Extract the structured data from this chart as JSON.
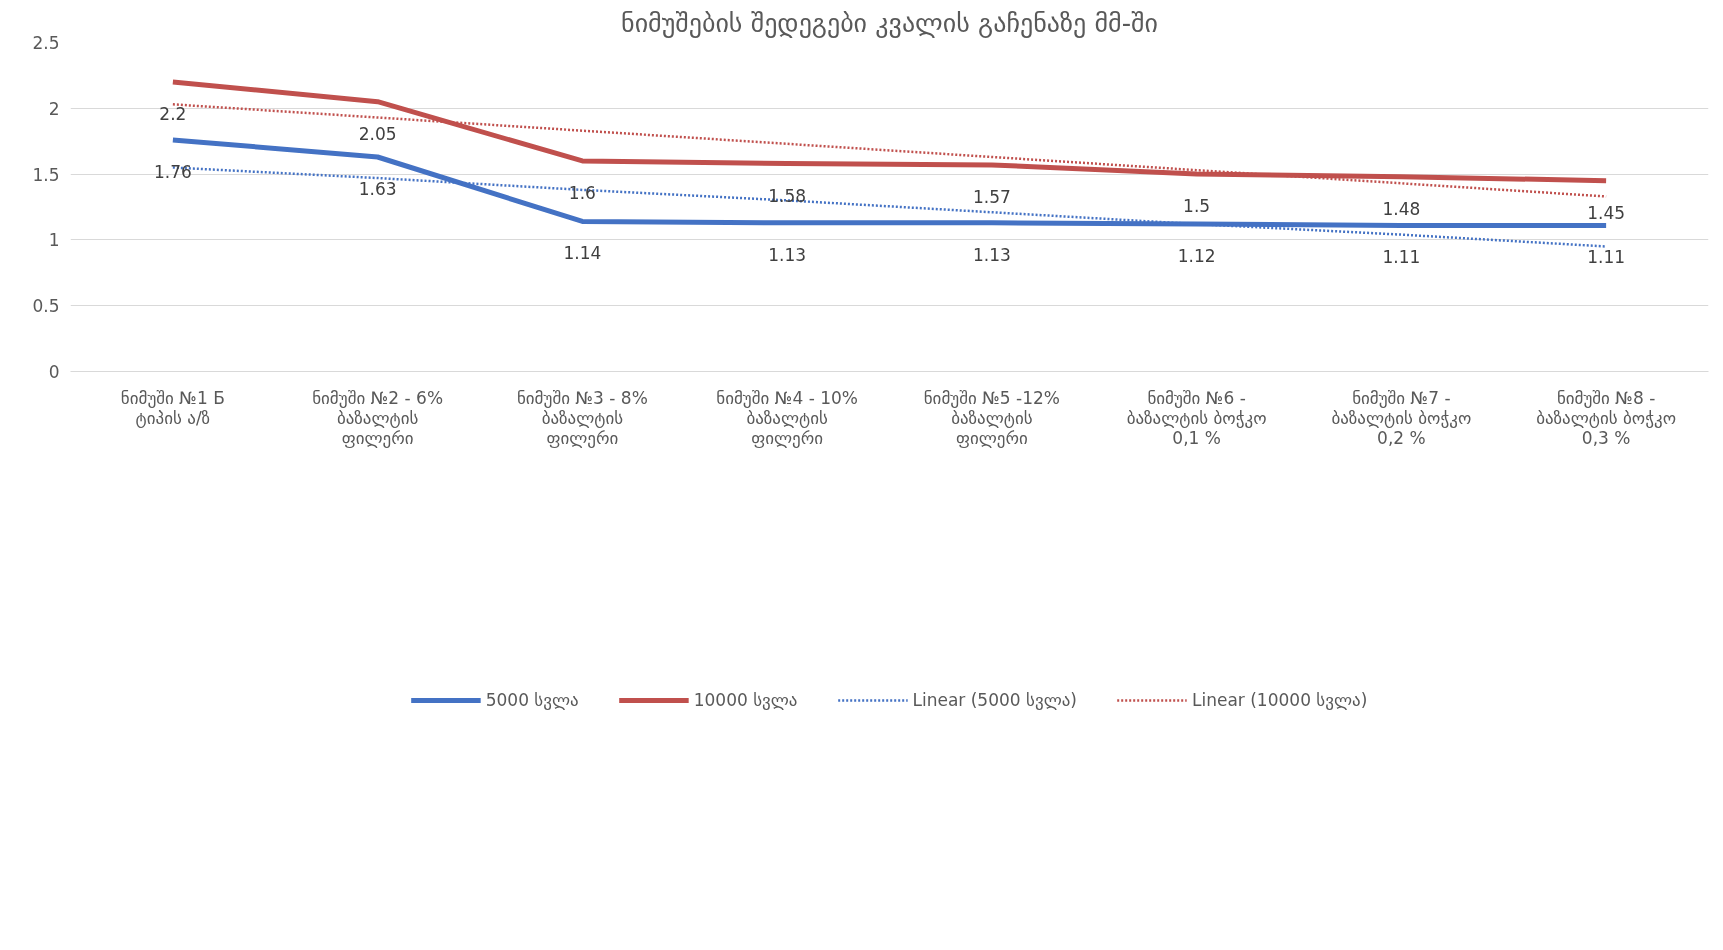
{
  "chart_data": {
    "type": "line",
    "title": "ნიმუშების შედეგები კვალის გაჩენაზე მმ-ში",
    "categories": [
      "ნიმუში №1 Б\nტიპის ა/ზ",
      "ნიმუში №2 - 6%\nბაზალტის\nფილერი",
      "ნიმუში №3 - 8%\nბაზალტის\nფილერი",
      "ნიმუში №4 - 10%\nბაზალტის\nფილერი",
      "ნიმუში №5 -12%\nბაზალტის\nფილერი",
      "ნიმუში №6 -\nბაზალტის ბოჭკო\n0,1 %",
      "ნიმუში №7 -\nბაზალტის ბოჭკო\n0,2 %",
      "ნიმუში №8 -\nბაზალტის ბოჭკო\n0,3 %"
    ],
    "series": [
      {
        "name": "5000 სვლა",
        "color": "#4472c4",
        "line_style": "solid",
        "data_labels": true,
        "values": [
          1.76,
          1.63,
          1.14,
          1.13,
          1.13,
          1.12,
          1.11,
          1.11
        ]
      },
      {
        "name": "10000 სვლა",
        "color": "#c0504d",
        "line_style": "solid",
        "data_labels": true,
        "values": [
          2.2,
          2.05,
          1.6,
          1.58,
          1.57,
          1.5,
          1.48,
          1.45
        ]
      },
      {
        "name": "Linear (5000 სვლა)",
        "color": "#4472c4",
        "line_style": "dotted",
        "values": [
          1.55,
          1.47,
          1.38,
          1.3,
          1.21,
          1.12,
          1.04,
          0.95
        ]
      },
      {
        "name": "Linear (10000 სვლა)",
        "color": "#c0504d",
        "line_style": "dotted",
        "values": [
          2.03,
          1.93,
          1.83,
          1.73,
          1.63,
          1.53,
          1.43,
          1.33
        ]
      }
    ],
    "ylim": [
      0,
      2.5
    ],
    "yticks": [
      0,
      0.5,
      1,
      1.5,
      2,
      2.5
    ],
    "grid": "y",
    "legend": "bottom",
    "marker": "none"
  }
}
